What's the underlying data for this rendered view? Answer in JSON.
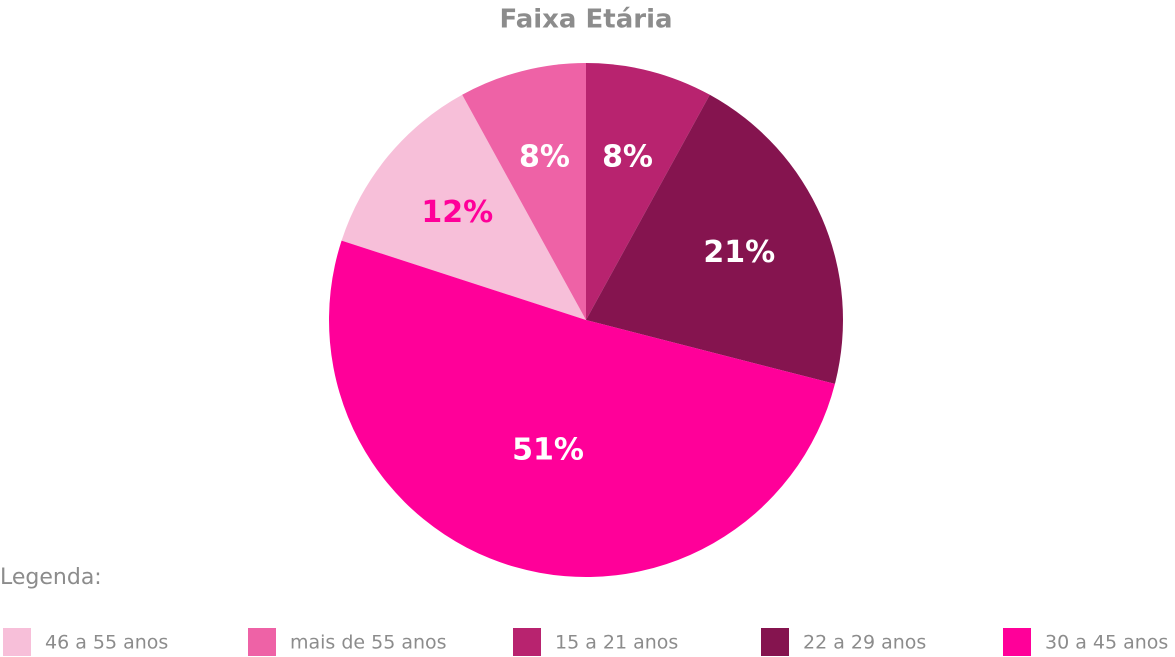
{
  "chart_data": {
    "type": "pie",
    "title": "Faixa Etária",
    "legend_title": "Legenda:",
    "categories": [
      "46 a 55 anos",
      "mais de 55 anos",
      "15 a 21 anos",
      "22 a 29 anos",
      "30 a 45 anos"
    ],
    "values": [
      12,
      8,
      8,
      21,
      51
    ],
    "value_labels": [
      "12%",
      "8%",
      "8%",
      "21%",
      "51%"
    ],
    "colors": [
      "#f7bfd9",
      "#ee62a6",
      "#b8236f",
      "#85144f",
      "#ff0099"
    ],
    "label_colors": [
      "#ff0099",
      "#ffffff",
      "#ffffff",
      "#ffffff",
      "#ffffff"
    ]
  }
}
